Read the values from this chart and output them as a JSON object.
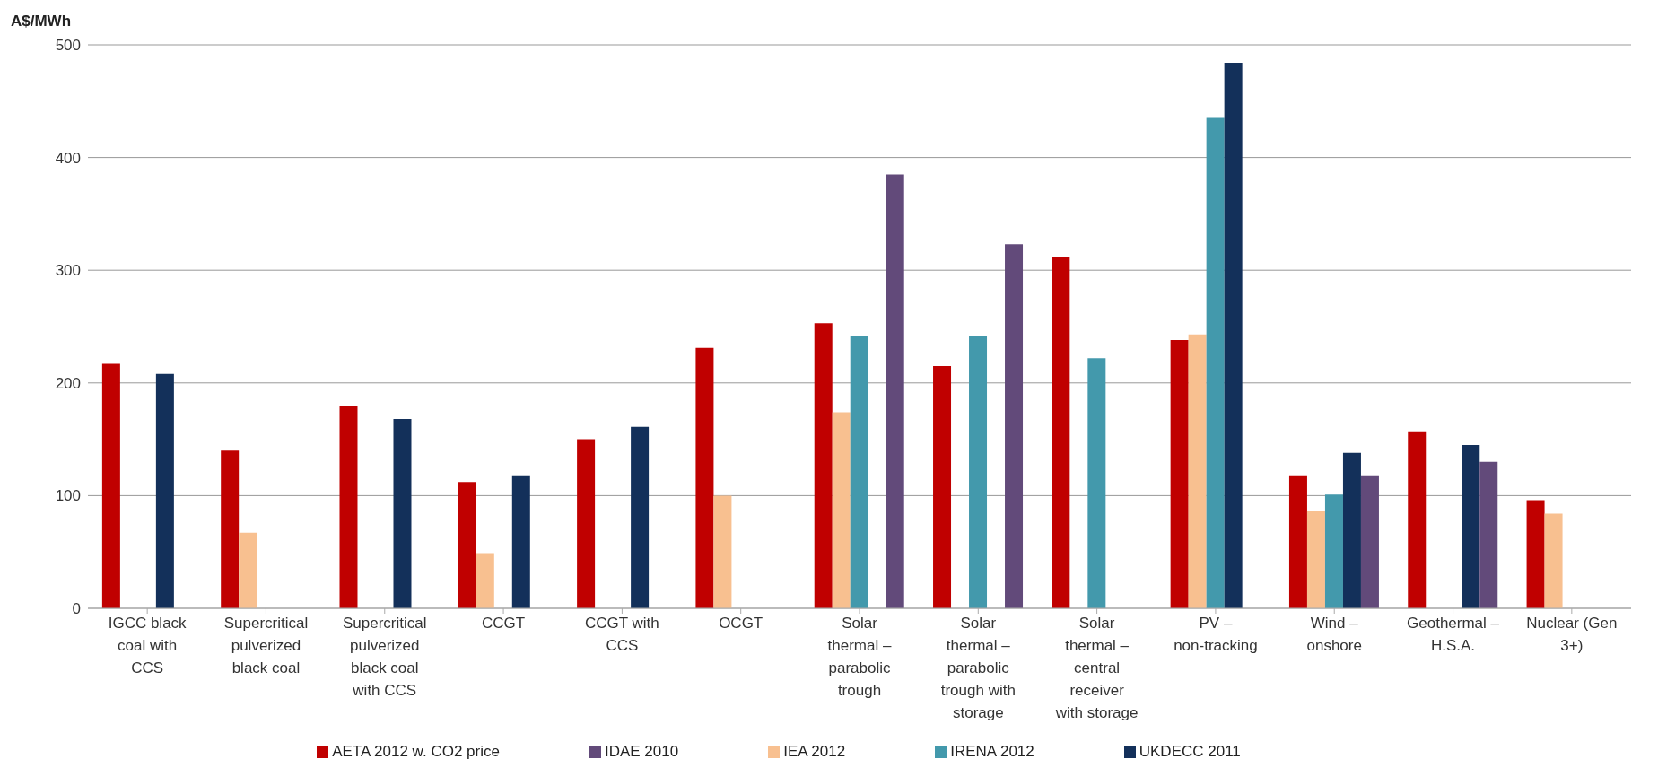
{
  "chart_data": {
    "type": "bar",
    "ylabel": "A$/MWh",
    "categories": [
      "IGCC black coal with CCS",
      "Supercritical pulverized black coal",
      "Supercritical pulverized black coal with CCS",
      "CCGT",
      "CCGT with CCS",
      "OCGT",
      "Solar thermal – parabolic trough",
      "Solar thermal – parabolic trough with storage",
      "Solar thermal – central receiver with storage",
      "PV – non-tracking",
      "Wind – onshore",
      "Geothermal – H.S.A.",
      "Nuclear (Gen 3+)"
    ],
    "series": [
      {
        "name": "AETA 2012 w. CO2 price",
        "color": "#c00000",
        "values": [
          217,
          140,
          180,
          112,
          150,
          231,
          253,
          215,
          312,
          238,
          118,
          157,
          96
        ]
      },
      {
        "name": "IEA 2012",
        "color": "#f8c090",
        "values": [
          null,
          67,
          null,
          49,
          null,
          100,
          174,
          null,
          null,
          243,
          86,
          null,
          84
        ]
      },
      {
        "name": "IRENA 2012",
        "color": "#4399ac",
        "values": [
          null,
          null,
          null,
          null,
          null,
          null,
          242,
          242,
          222,
          436,
          101,
          null,
          null
        ]
      },
      {
        "name": "UKDECC 2011",
        "color": "#13305a",
        "values": [
          208,
          null,
          168,
          118,
          161,
          null,
          null,
          null,
          null,
          484,
          138,
          145,
          null
        ]
      },
      {
        "name": "IDAE 2010",
        "color": "#624a7a",
        "values": [
          null,
          null,
          null,
          null,
          null,
          null,
          385,
          323,
          null,
          null,
          118,
          130,
          null
        ]
      }
    ],
    "ylim": [
      0,
      500
    ],
    "yticks": [
      0,
      100,
      200,
      300,
      400,
      500
    ],
    "grid": "y",
    "legend": "bottom"
  }
}
